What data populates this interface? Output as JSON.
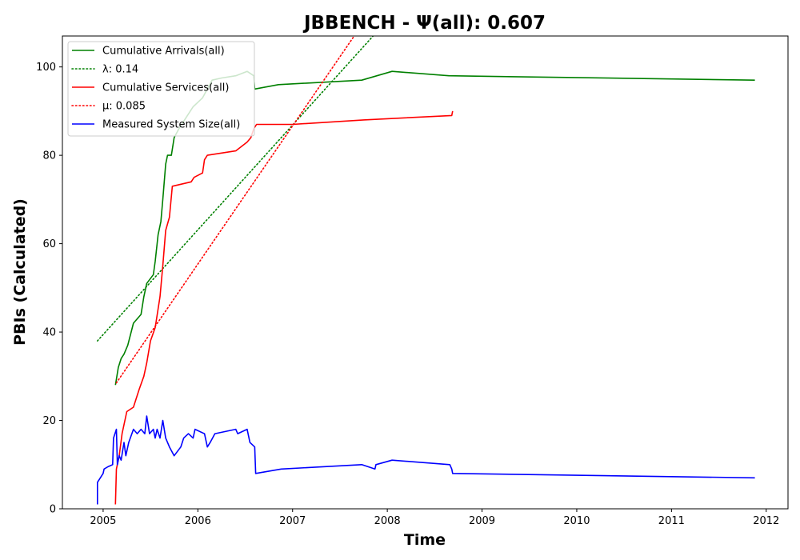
{
  "chart_data": {
    "type": "line",
    "title": "JBBENCH -  Ψ(all): 0.607",
    "xlabel": "Time",
    "ylabel": "PBIs (Calculated)",
    "xlim": [
      2004.57,
      2012.23
    ],
    "ylim": [
      0,
      107
    ],
    "x_ticks": [
      "2005",
      "2006",
      "2007",
      "2008",
      "2009",
      "2010",
      "2011",
      "2012"
    ],
    "x_tick_values": [
      2005,
      2006,
      2007,
      2008,
      2009,
      2010,
      2011,
      2012
    ],
    "y_ticks": [
      "0",
      "20",
      "40",
      "60",
      "80",
      "100"
    ],
    "y_tick_values": [
      0,
      20,
      40,
      60,
      80,
      100
    ],
    "grid": false,
    "legend_position": "top-left",
    "series": [
      {
        "name": "Cumulative Arrivals(all)",
        "color": "#008000",
        "style": "solid",
        "points": [
          [
            2005.13,
            28
          ],
          [
            2005.16,
            32
          ],
          [
            2005.19,
            34
          ],
          [
            2005.22,
            35
          ],
          [
            2005.26,
            37
          ],
          [
            2005.32,
            42
          ],
          [
            2005.4,
            44
          ],
          [
            2005.43,
            48
          ],
          [
            2005.46,
            51
          ],
          [
            2005.53,
            53
          ],
          [
            2005.55,
            56
          ],
          [
            2005.58,
            62
          ],
          [
            2005.61,
            65
          ],
          [
            2005.63,
            70
          ],
          [
            2005.66,
            78
          ],
          [
            2005.68,
            80
          ],
          [
            2005.72,
            80
          ],
          [
            2005.75,
            84
          ],
          [
            2005.8,
            86
          ],
          [
            2005.86,
            88
          ],
          [
            2005.95,
            91
          ],
          [
            2006.0,
            92
          ],
          [
            2006.05,
            93
          ],
          [
            2006.15,
            97
          ],
          [
            2006.25,
            97.5
          ],
          [
            2006.4,
            98
          ],
          [
            2006.52,
            99
          ],
          [
            2006.59,
            98
          ],
          [
            2006.6,
            95
          ],
          [
            2006.85,
            96
          ],
          [
            2007.73,
            97
          ],
          [
            2008.05,
            99
          ],
          [
            2008.65,
            98
          ],
          [
            2011.88,
            97
          ]
        ]
      },
      {
        "name": "λ: 0.14",
        "color": "#008000",
        "style": "dotted",
        "points": [
          [
            2004.94,
            38
          ],
          [
            2007.85,
            107
          ]
        ]
      },
      {
        "name": "Cumulative Services(all)",
        "color": "#ff0000",
        "style": "solid",
        "points": [
          [
            2005.13,
            1
          ],
          [
            2005.14,
            9
          ],
          [
            2005.17,
            12
          ],
          [
            2005.2,
            17
          ],
          [
            2005.25,
            22
          ],
          [
            2005.32,
            23
          ],
          [
            2005.38,
            27
          ],
          [
            2005.43,
            30
          ],
          [
            2005.46,
            33
          ],
          [
            2005.5,
            38
          ],
          [
            2005.55,
            41
          ],
          [
            2005.6,
            48
          ],
          [
            2005.63,
            55
          ],
          [
            2005.66,
            63
          ],
          [
            2005.7,
            66
          ],
          [
            2005.73,
            73
          ],
          [
            2005.93,
            74
          ],
          [
            2005.96,
            75
          ],
          [
            2006.05,
            76
          ],
          [
            2006.07,
            79
          ],
          [
            2006.1,
            80
          ],
          [
            2006.4,
            81
          ],
          [
            2006.52,
            83
          ],
          [
            2006.56,
            84
          ],
          [
            2006.59,
            86
          ],
          [
            2006.62,
            87
          ],
          [
            2007.0,
            87
          ],
          [
            2007.75,
            88
          ],
          [
            2008.68,
            89
          ],
          [
            2008.69,
            90
          ]
        ]
      },
      {
        "name": "μ: 0.085",
        "color": "#ff0000",
        "style": "dotted",
        "points": [
          [
            2005.14,
            28.5
          ],
          [
            2007.65,
            107
          ]
        ]
      },
      {
        "name": "Measured System Size(all)",
        "color": "#0000ff",
        "style": "solid",
        "points": [
          [
            2004.94,
            1
          ],
          [
            2004.94,
            6
          ],
          [
            2005.0,
            8
          ],
          [
            2005.01,
            9
          ],
          [
            2005.05,
            9.5
          ],
          [
            2005.1,
            10
          ],
          [
            2005.11,
            16
          ],
          [
            2005.14,
            18
          ],
          [
            2005.15,
            10
          ],
          [
            2005.17,
            12
          ],
          [
            2005.19,
            11
          ],
          [
            2005.22,
            15
          ],
          [
            2005.24,
            12
          ],
          [
            2005.27,
            15
          ],
          [
            2005.32,
            18
          ],
          [
            2005.36,
            17
          ],
          [
            2005.4,
            18
          ],
          [
            2005.44,
            17
          ],
          [
            2005.46,
            21
          ],
          [
            2005.49,
            17
          ],
          [
            2005.53,
            18
          ],
          [
            2005.55,
            16
          ],
          [
            2005.57,
            18
          ],
          [
            2005.6,
            16
          ],
          [
            2005.63,
            20
          ],
          [
            2005.66,
            16
          ],
          [
            2005.7,
            14
          ],
          [
            2005.75,
            12
          ],
          [
            2005.82,
            14
          ],
          [
            2005.85,
            16
          ],
          [
            2005.9,
            17
          ],
          [
            2005.95,
            16
          ],
          [
            2005.97,
            18
          ],
          [
            2006.07,
            17
          ],
          [
            2006.1,
            14
          ],
          [
            2006.13,
            15
          ],
          [
            2006.18,
            17
          ],
          [
            2006.4,
            18
          ],
          [
            2006.42,
            17
          ],
          [
            2006.52,
            18
          ],
          [
            2006.55,
            15
          ],
          [
            2006.6,
            14
          ],
          [
            2006.61,
            8
          ],
          [
            2006.88,
            9
          ],
          [
            2007.73,
            10
          ],
          [
            2007.87,
            9
          ],
          [
            2007.88,
            10
          ],
          [
            2008.05,
            11
          ],
          [
            2008.66,
            10
          ],
          [
            2008.68,
            9
          ],
          [
            2008.69,
            8
          ],
          [
            2011.88,
            7
          ]
        ]
      }
    ]
  }
}
